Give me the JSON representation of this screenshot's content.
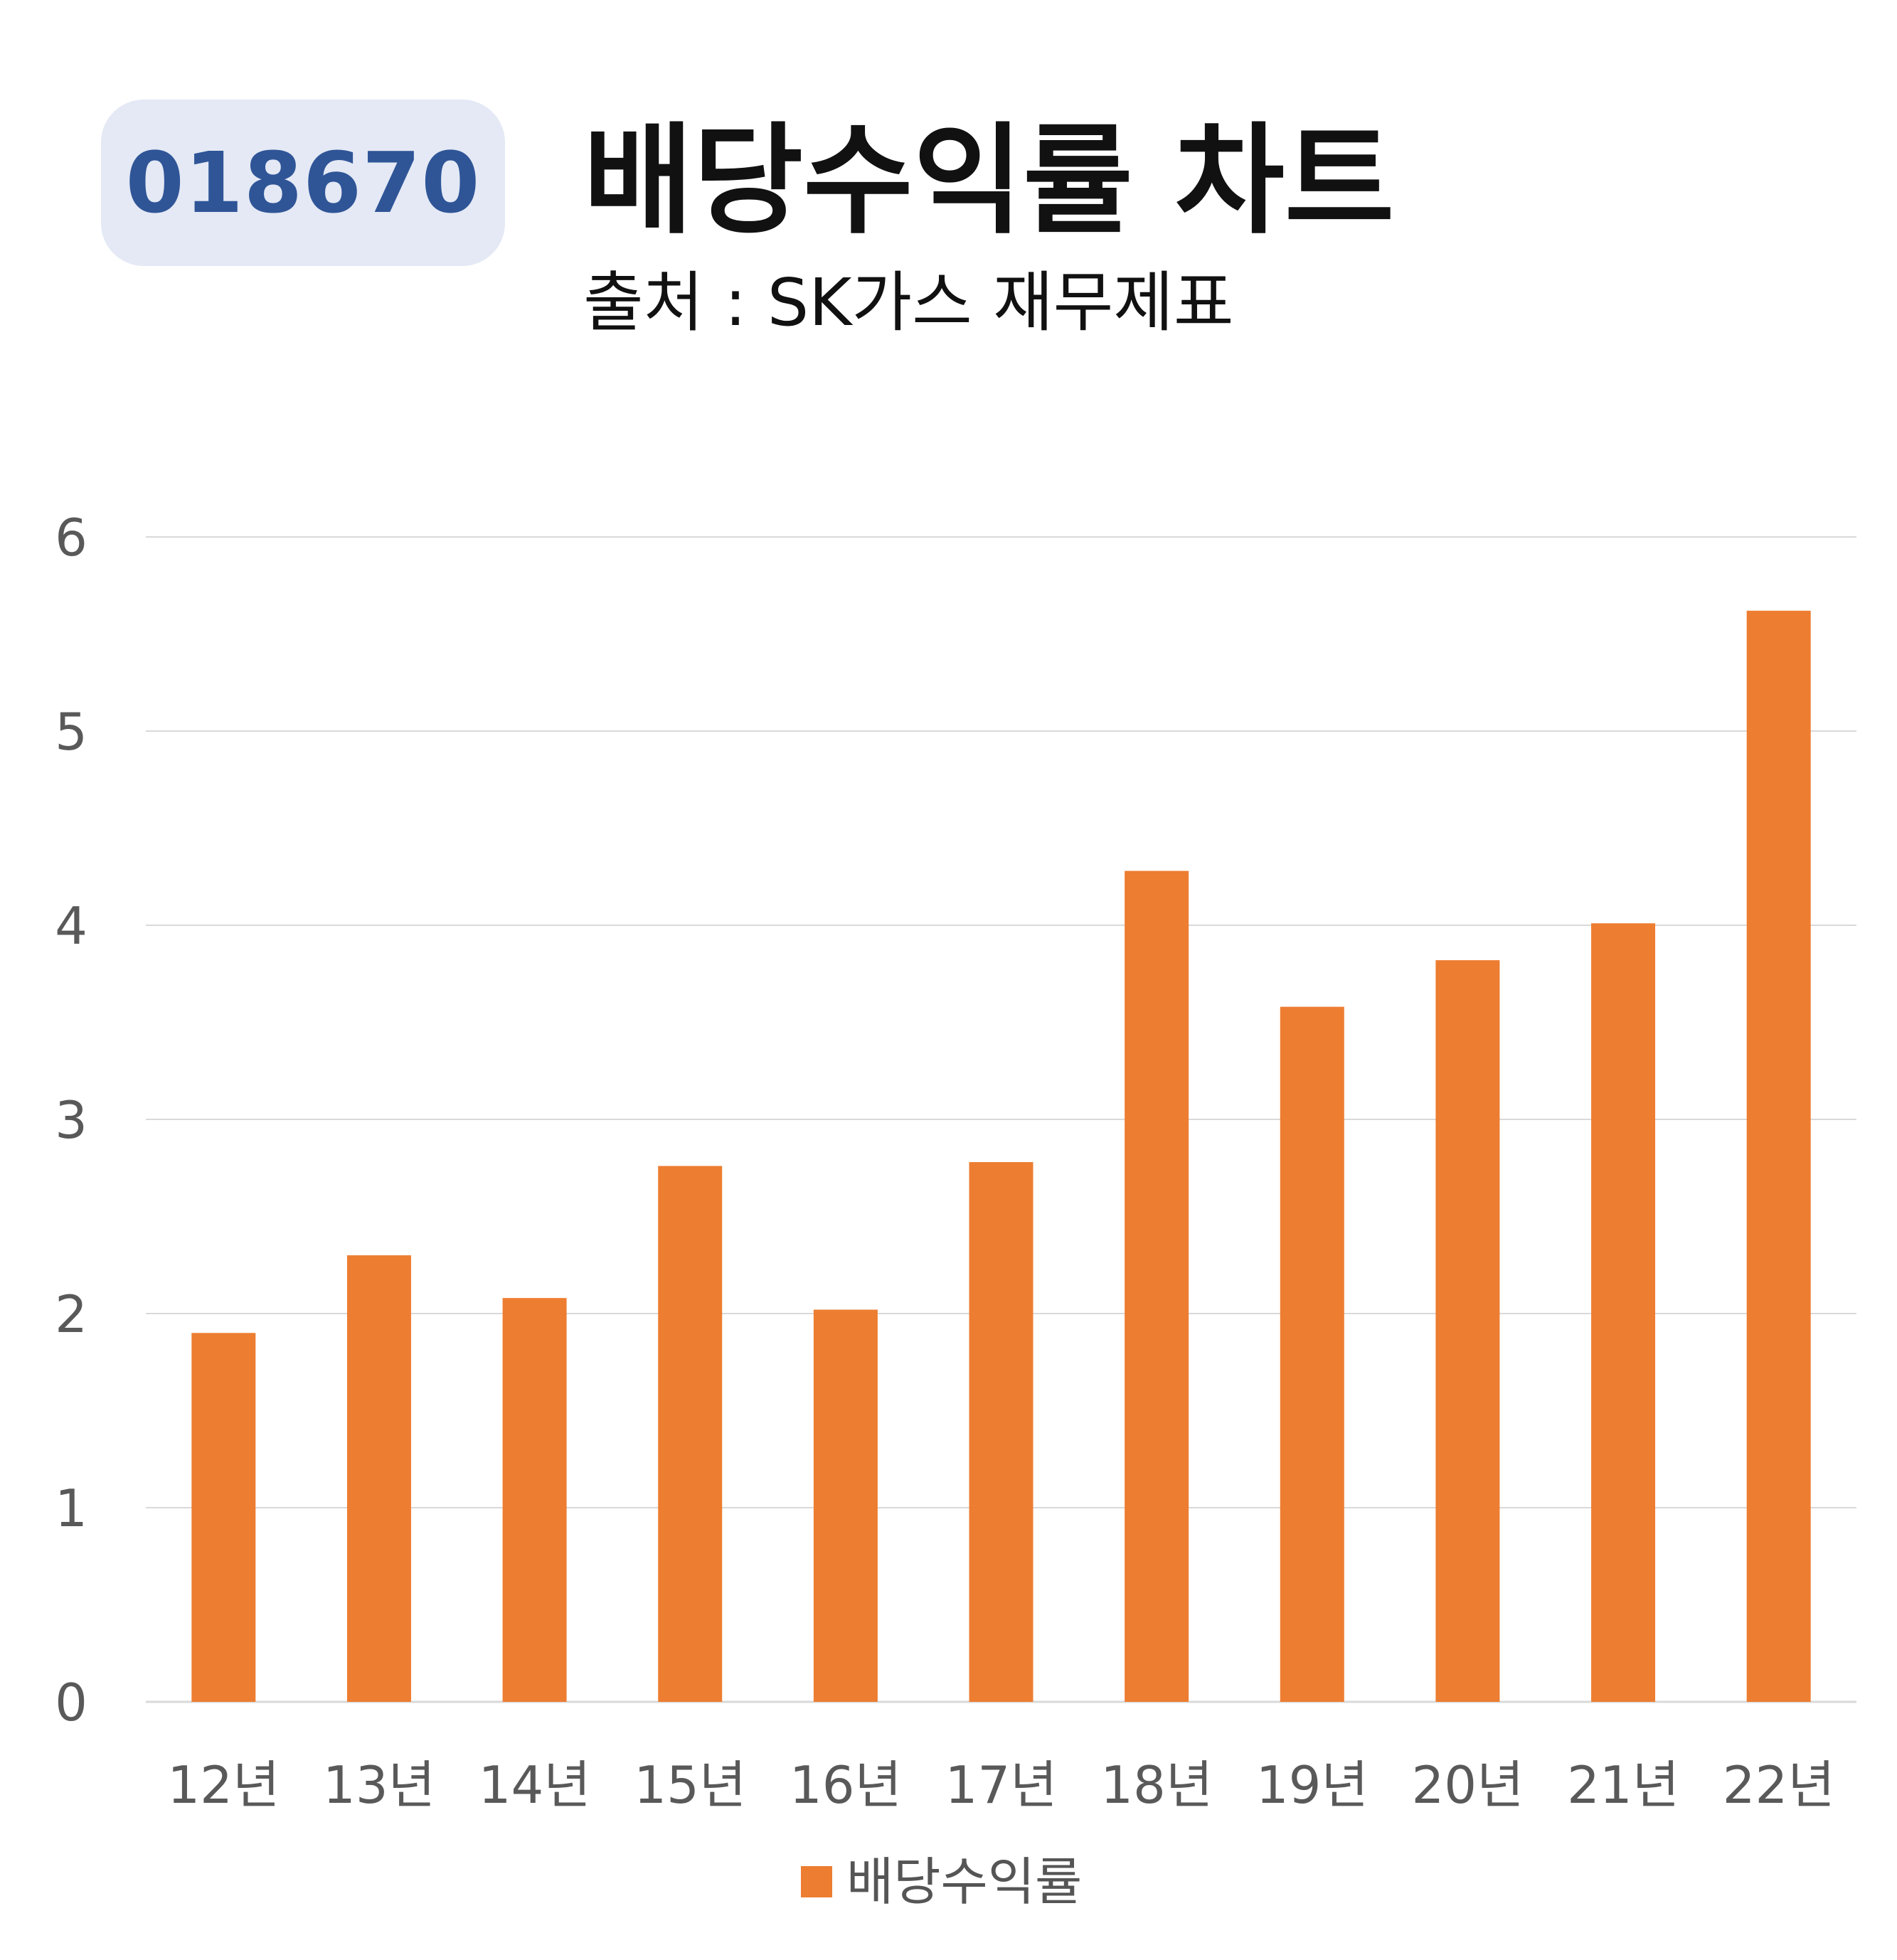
{
  "header": {
    "ticker": "018670",
    "title": "배당수익률 차트",
    "subtitle": "출처 : SK가스 재무제표"
  },
  "colors": {
    "bar": "#ed7d31",
    "badge_bg": "#e4e9f5",
    "badge_text": "#2f5597",
    "grid": "#d9d9d9",
    "tick_text": "#595959"
  },
  "chart_data": {
    "type": "bar",
    "categories": [
      "12년",
      "13년",
      "14년",
      "15년",
      "16년",
      "17년",
      "18년",
      "19년",
      "20년",
      "21년",
      "22년"
    ],
    "series": [
      {
        "name": "배당수익률",
        "values": [
          1.9,
          2.3,
          2.08,
          2.76,
          2.02,
          2.78,
          4.28,
          3.58,
          3.82,
          4.01,
          5.62
        ]
      }
    ],
    "yticks": [
      0,
      1,
      2,
      3,
      4,
      5,
      6
    ],
    "ylim": [
      0,
      6
    ],
    "grid": true,
    "legend_position": "bottom"
  }
}
